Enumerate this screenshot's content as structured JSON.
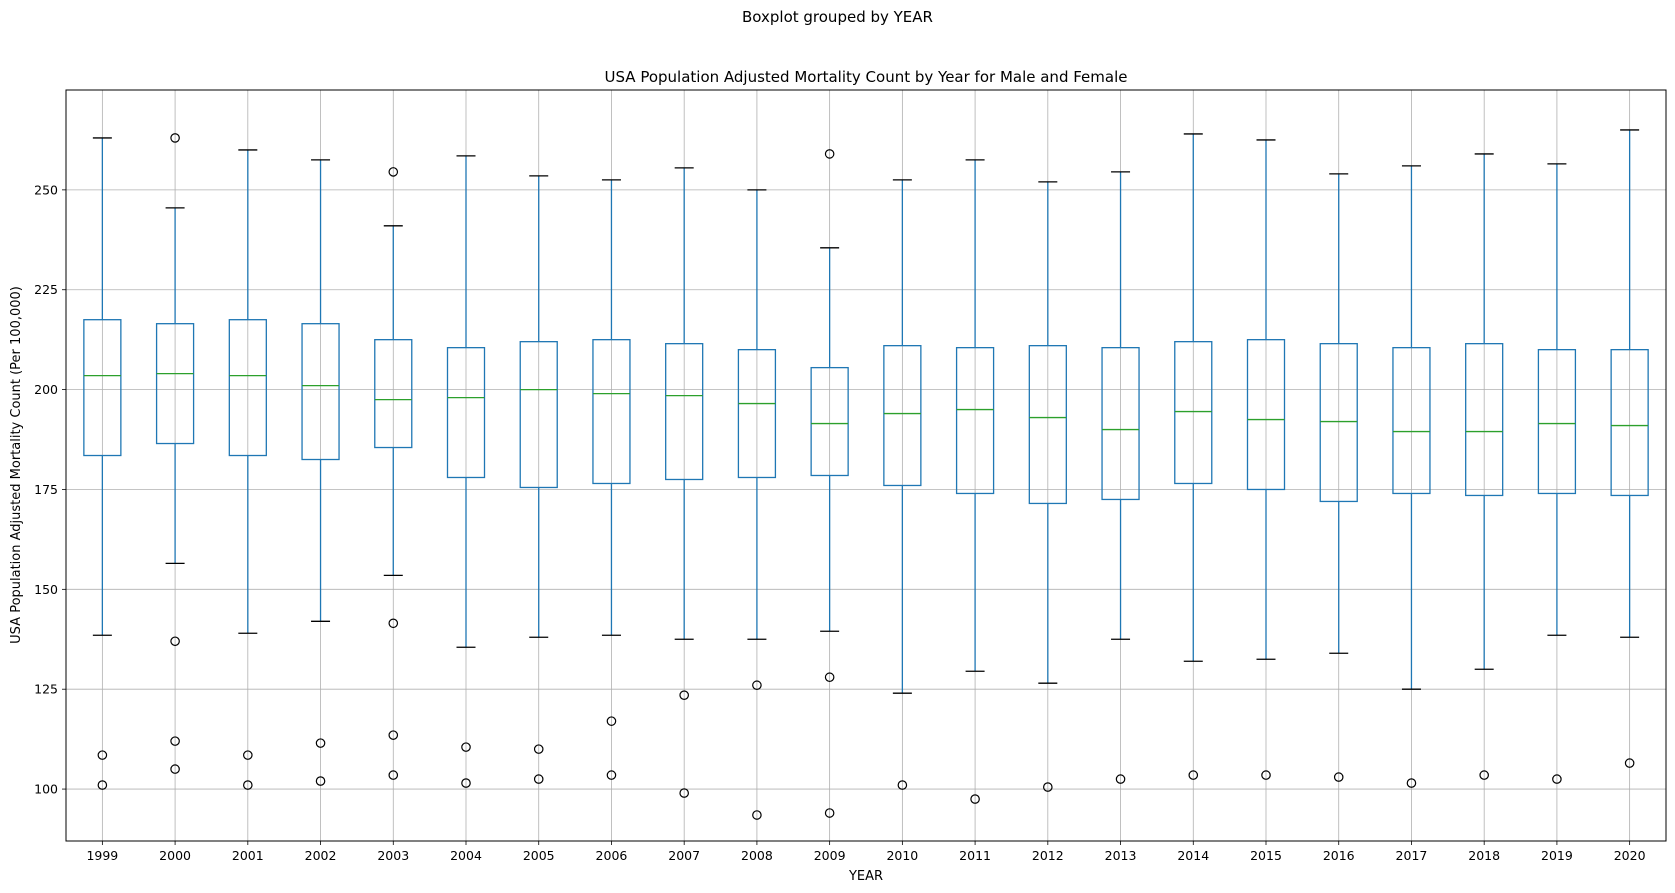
{
  "chart_data": {
    "type": "boxplot",
    "suptitle": "Boxplot grouped by YEAR",
    "title": "USA Population Adjusted Mortality Count by Year for Male and Female",
    "xlabel": "YEAR",
    "ylabel": "USA Population Adjusted Mortality Count (Per 100,000)",
    "ylim": [
      87,
      275
    ],
    "yticks": [
      100,
      125,
      150,
      175,
      200,
      225,
      250
    ],
    "grid": true,
    "colors": {
      "box": "#1f77b4",
      "median": "#2ca02c",
      "caps": "#000000",
      "grid": "#b0b0b0"
    },
    "categories": [
      "1999",
      "2000",
      "2001",
      "2002",
      "2003",
      "2004",
      "2005",
      "2006",
      "2007",
      "2008",
      "2009",
      "2010",
      "2011",
      "2012",
      "2013",
      "2014",
      "2015",
      "2016",
      "2017",
      "2018",
      "2019",
      "2020"
    ],
    "boxes": [
      {
        "q1": 183.5,
        "median": 203.5,
        "q3": 217.5,
        "whisker_low": 138.5,
        "whisker_high": 263.0,
        "fliers": [
          108.5,
          101.0
        ]
      },
      {
        "q1": 186.5,
        "median": 204.0,
        "q3": 216.5,
        "whisker_low": 156.5,
        "whisker_high": 245.5,
        "fliers": [
          263.0,
          137.0,
          112.0,
          105.0
        ]
      },
      {
        "q1": 183.5,
        "median": 203.5,
        "q3": 217.5,
        "whisker_low": 139.0,
        "whisker_high": 260.0,
        "fliers": [
          108.5,
          101.0
        ]
      },
      {
        "q1": 182.5,
        "median": 201.0,
        "q3": 216.5,
        "whisker_low": 142.0,
        "whisker_high": 257.5,
        "fliers": [
          111.5,
          102.0
        ]
      },
      {
        "q1": 185.5,
        "median": 197.5,
        "q3": 212.5,
        "whisker_low": 153.5,
        "whisker_high": 241.0,
        "fliers": [
          254.5,
          141.5,
          113.5,
          103.5
        ]
      },
      {
        "q1": 178.0,
        "median": 198.0,
        "q3": 210.5,
        "whisker_low": 135.5,
        "whisker_high": 258.5,
        "fliers": [
          110.5,
          101.5
        ]
      },
      {
        "q1": 175.5,
        "median": 200.0,
        "q3": 212.0,
        "whisker_low": 138.0,
        "whisker_high": 253.5,
        "fliers": [
          110.0,
          102.5
        ]
      },
      {
        "q1": 176.5,
        "median": 199.0,
        "q3": 212.5,
        "whisker_low": 138.5,
        "whisker_high": 252.5,
        "fliers": [
          117.0,
          103.5
        ]
      },
      {
        "q1": 177.5,
        "median": 198.5,
        "q3": 211.5,
        "whisker_low": 137.5,
        "whisker_high": 255.5,
        "fliers": [
          123.5,
          99.0
        ]
      },
      {
        "q1": 178.0,
        "median": 196.5,
        "q3": 210.0,
        "whisker_low": 137.5,
        "whisker_high": 250.0,
        "fliers": [
          126.0,
          93.5
        ]
      },
      {
        "q1": 178.5,
        "median": 191.5,
        "q3": 205.5,
        "whisker_low": 139.5,
        "whisker_high": 235.5,
        "fliers": [
          259.0,
          128.0,
          94.0
        ]
      },
      {
        "q1": 176.0,
        "median": 194.0,
        "q3": 211.0,
        "whisker_low": 124.0,
        "whisker_high": 252.5,
        "fliers": [
          101.0
        ]
      },
      {
        "q1": 174.0,
        "median": 195.0,
        "q3": 210.5,
        "whisker_low": 129.5,
        "whisker_high": 257.5,
        "fliers": [
          97.5
        ]
      },
      {
        "q1": 171.5,
        "median": 193.0,
        "q3": 211.0,
        "whisker_low": 126.5,
        "whisker_high": 252.0,
        "fliers": [
          100.5
        ]
      },
      {
        "q1": 172.5,
        "median": 190.0,
        "q3": 210.5,
        "whisker_low": 137.5,
        "whisker_high": 254.5,
        "fliers": [
          102.5
        ]
      },
      {
        "q1": 176.5,
        "median": 194.5,
        "q3": 212.0,
        "whisker_low": 132.0,
        "whisker_high": 264.0,
        "fliers": [
          103.5
        ]
      },
      {
        "q1": 175.0,
        "median": 192.5,
        "q3": 212.5,
        "whisker_low": 132.5,
        "whisker_high": 262.5,
        "fliers": [
          103.5
        ]
      },
      {
        "q1": 172.0,
        "median": 192.0,
        "q3": 211.5,
        "whisker_low": 134.0,
        "whisker_high": 254.0,
        "fliers": [
          103.0
        ]
      },
      {
        "q1": 174.0,
        "median": 189.5,
        "q3": 210.5,
        "whisker_low": 125.0,
        "whisker_high": 256.0,
        "fliers": [
          101.5
        ]
      },
      {
        "q1": 173.5,
        "median": 189.5,
        "q3": 211.5,
        "whisker_low": 130.0,
        "whisker_high": 259.0,
        "fliers": [
          103.5
        ]
      },
      {
        "q1": 174.0,
        "median": 191.5,
        "q3": 210.0,
        "whisker_low": 138.5,
        "whisker_high": 256.5,
        "fliers": [
          102.5
        ]
      },
      {
        "q1": 173.5,
        "median": 191.0,
        "q3": 210.0,
        "whisker_low": 138.0,
        "whisker_high": 265.0,
        "fliers": [
          106.5
        ]
      }
    ]
  }
}
